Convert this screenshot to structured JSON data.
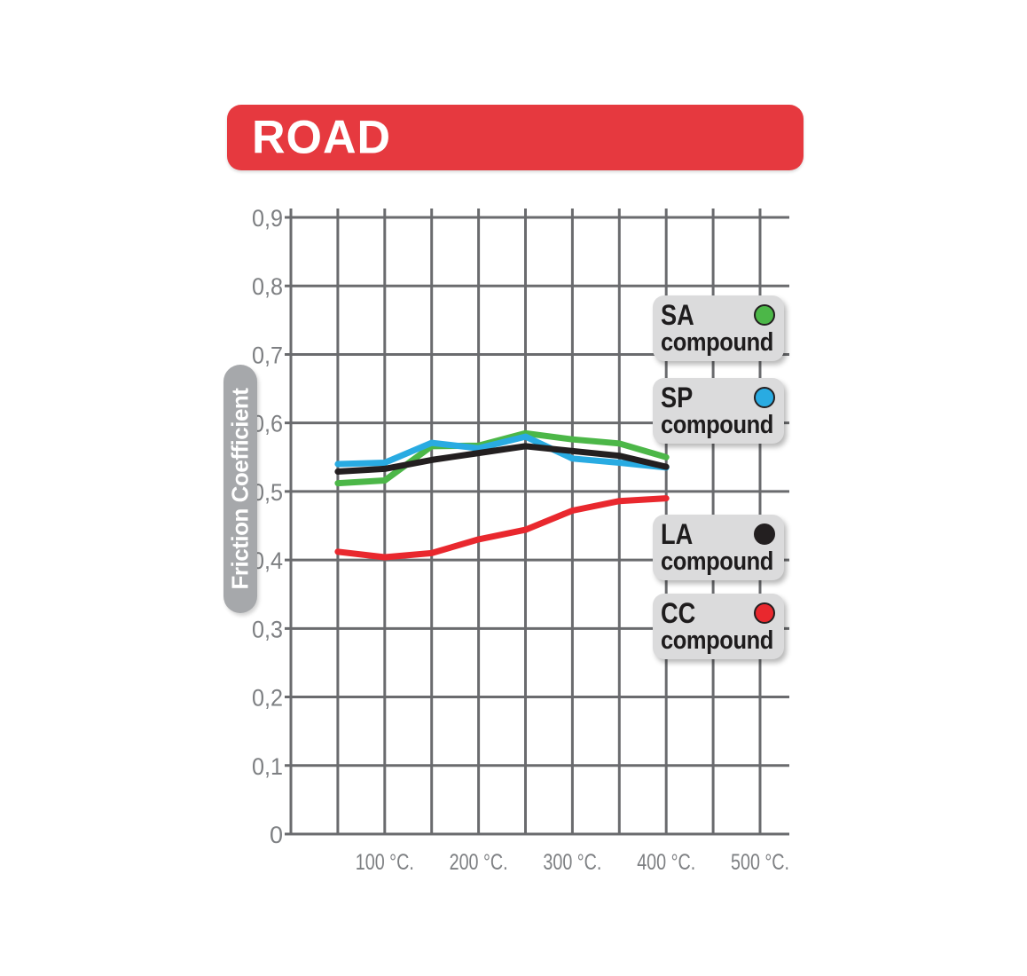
{
  "header": {
    "title": "ROAD",
    "banner_color": "#E6393F"
  },
  "chart_data": {
    "type": "line",
    "title": "",
    "xlabel": "",
    "ylabel": "Friction Coefficient",
    "x_unit": "°C",
    "xlim": [
      0,
      500
    ],
    "ylim": [
      0,
      0.9
    ],
    "grid": true,
    "grid_step_x_celsius": 50,
    "grid_step_y": 0.1,
    "legend_position": "right-inside",
    "y_tick_labels": [
      "0",
      "0,1",
      "0,2",
      "0,3",
      "0,4",
      "0,5",
      "0,6",
      "0,7",
      "0,8",
      "0,9"
    ],
    "x_tick_values": [
      100,
      200,
      300,
      400,
      500
    ],
    "x_tick_labels": [
      "100 °C.",
      "200 °C.",
      "300 °C.",
      "400 °C.",
      "500 °C."
    ],
    "x_celsius": [
      50,
      100,
      150,
      200,
      250,
      300,
      350,
      400
    ],
    "series": [
      {
        "name": "SA compound",
        "code": "SA",
        "label": "compound",
        "color": "#4CB748",
        "values": [
          0.512,
          0.516,
          0.566,
          0.567,
          0.585,
          0.576,
          0.57,
          0.55
        ]
      },
      {
        "name": "SP compound",
        "code": "SP",
        "label": "compound",
        "color": "#29ABE2",
        "values": [
          0.54,
          0.542,
          0.571,
          0.563,
          0.58,
          0.548,
          0.542,
          0.535
        ]
      },
      {
        "name": "LA compound",
        "code": "LA",
        "label": "compound",
        "color": "#231F20",
        "values": [
          0.529,
          0.533,
          0.546,
          0.556,
          0.566,
          0.559,
          0.552,
          0.536
        ]
      },
      {
        "name": "CC compound",
        "code": "CC",
        "label": "compound",
        "color": "#E9282E",
        "values": [
          0.412,
          0.404,
          0.41,
          0.43,
          0.444,
          0.472,
          0.486,
          0.49
        ]
      }
    ],
    "colors": {
      "gridline": "#6A6B6E",
      "tick_text": "#7D7F82",
      "ylabel_pill": "#A6A8AB",
      "legend_bg": "#DBDBDC"
    }
  }
}
